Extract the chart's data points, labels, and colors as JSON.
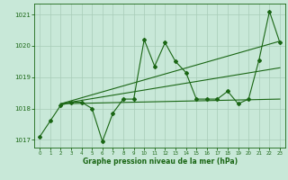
{
  "title": "Graphe pression niveau de la mer (hPa)",
  "bg_color": "#c8e8d8",
  "grid_color": "#a8ccb8",
  "line_color": "#1a6614",
  "x_values": [
    0,
    1,
    2,
    3,
    4,
    5,
    6,
    7,
    8,
    9,
    10,
    11,
    12,
    13,
    14,
    15,
    16,
    17,
    18,
    19,
    20,
    21,
    22,
    23
  ],
  "y_main": [
    1017.1,
    1017.6,
    1018.1,
    1018.2,
    1018.2,
    1018.0,
    1016.95,
    1017.85,
    1018.3,
    1018.3,
    1020.2,
    1019.35,
    1020.1,
    1019.5,
    1019.15,
    1018.3,
    1018.3,
    1018.3,
    1018.55,
    1018.15,
    1018.3,
    1019.55,
    1021.1,
    1020.1
  ],
  "trend1_x": [
    2,
    23
  ],
  "trend1_y": [
    1018.15,
    1020.15
  ],
  "trend2_x": [
    2,
    23
  ],
  "trend2_y": [
    1018.15,
    1019.3
  ],
  "trend3_x": [
    2,
    23
  ],
  "trend3_y": [
    1018.15,
    1018.3
  ],
  "ylim": [
    1016.75,
    1021.35
  ],
  "yticks": [
    1017,
    1018,
    1019,
    1020,
    1021
  ],
  "xlim": [
    -0.5,
    23.5
  ],
  "xticks": [
    0,
    1,
    2,
    3,
    4,
    5,
    6,
    7,
    8,
    9,
    10,
    11,
    12,
    13,
    14,
    15,
    16,
    17,
    18,
    19,
    20,
    21,
    22,
    23
  ]
}
